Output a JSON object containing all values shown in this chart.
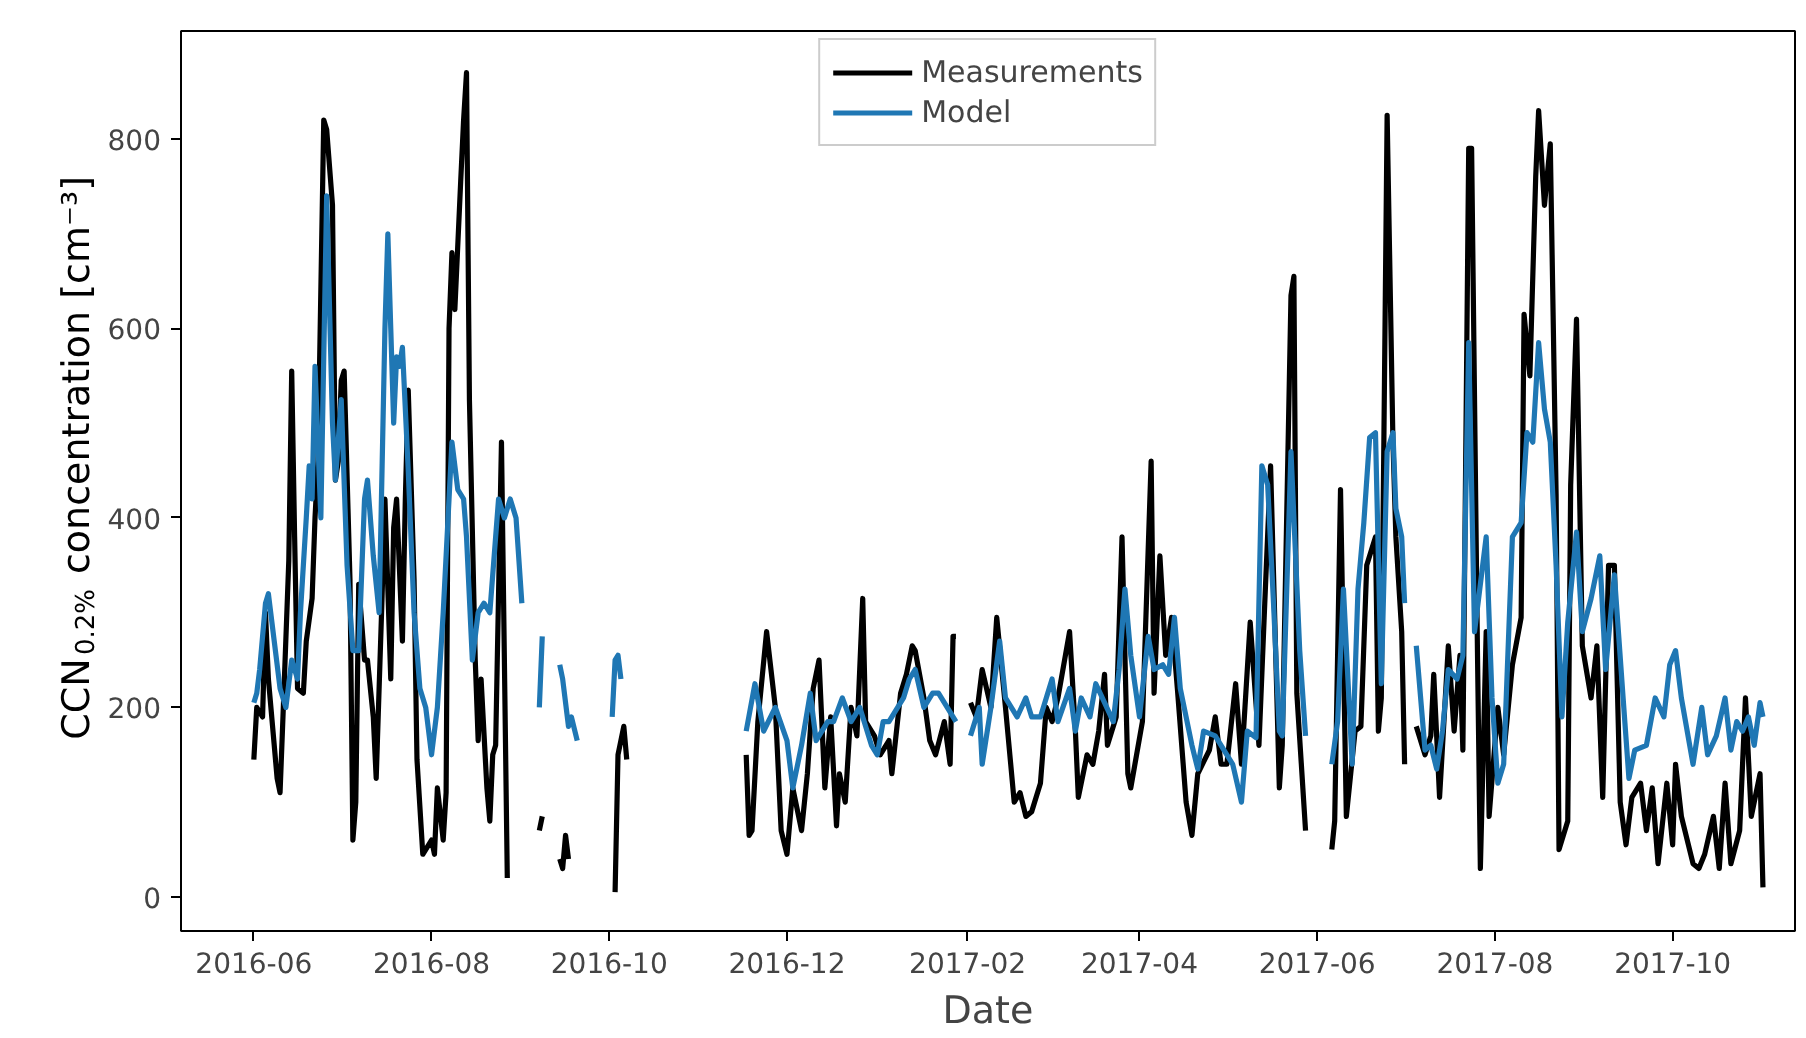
{
  "chart_data": {
    "type": "line",
    "xlabel": "Date",
    "ylabel": "CCN$_{0.2%}$ concentration [cm⁻³]",
    "xlim": [
      "2016-05-07",
      "2017-11-12"
    ],
    "ylim": [
      -36,
      914
    ],
    "xticks": [
      "2016-06",
      "2016-08",
      "2016-10",
      "2016-12",
      "2017-02",
      "2017-04",
      "2017-06",
      "2017-08",
      "2017-10"
    ],
    "yticks": [
      0,
      200,
      400,
      600,
      800
    ],
    "grid": false,
    "legend": "top",
    "marker": "none",
    "line_style": "solid",
    "series": [
      {
        "name": "Measurements",
        "color": "#000000",
        "x": [
          "2016-06-01",
          "2016-06-02",
          "2016-06-04",
          "2016-06-05",
          "2016-06-06",
          "2016-06-08",
          "2016-06-09",
          "2016-06-10",
          "2016-06-11",
          "2016-06-13",
          "2016-06-14",
          "2016-06-15",
          "2016-06-16",
          "2016-06-18",
          "2016-06-19",
          "2016-06-21",
          "2016-06-22",
          "2016-06-23",
          "2016-06-25",
          "2016-06-26",
          "2016-06-28",
          "2016-06-29",
          "2016-06-30",
          "2016-07-01",
          "2016-07-02",
          "2016-07-04",
          "2016-07-05",
          "2016-07-06",
          "2016-07-07",
          "2016-07-09",
          "2016-07-10",
          "2016-07-12",
          "2016-07-13",
          "2016-07-15",
          "2016-07-16",
          "2016-07-18",
          "2016-07-19",
          "2016-07-20",
          "2016-07-22",
          "2016-07-23",
          "2016-07-24",
          "2016-07-26",
          "2016-07-27",
          "2016-07-29",
          "2016-07-30",
          "2016-08-01",
          "2016-08-02",
          "2016-08-03",
          "2016-08-05",
          "2016-08-06",
          "2016-08-07",
          "2016-08-08",
          "2016-08-09",
          "2016-08-11",
          "2016-08-12",
          "2016-08-13",
          "2016-08-14",
          "2016-08-16",
          "2016-08-17",
          "2016-08-18",
          "2016-08-20",
          "2016-08-21",
          "2016-08-22",
          "2016-08-23",
          "2016-08-25",
          "2016-08-26",
          "2016-08-27",
          "2016-08-30",
          "2016-09-07",
          "2016-09-08",
          "2016-09-11",
          "2016-09-14",
          "2016-09-15",
          "2016-09-16",
          "2016-09-17",
          "2016-09-25",
          "2016-10-03",
          "2016-10-04",
          "2016-10-05",
          "2016-10-06",
          "2016-10-07",
          "2016-11-01",
          "2016-11-17",
          "2016-11-18",
          "2016-11-19",
          "2016-11-21",
          "2016-11-24",
          "2016-11-27",
          "2016-11-29",
          "2016-12-01",
          "2016-12-03",
          "2016-12-06",
          "2016-12-08",
          "2016-12-10",
          "2016-12-12",
          "2016-12-14",
          "2016-12-16",
          "2016-12-18",
          "2016-12-19",
          "2016-12-21",
          "2016-12-23",
          "2016-12-25",
          "2016-12-27",
          "2016-12-28",
          "2016-12-31",
          "2017-01-02",
          "2017-01-05",
          "2017-01-06",
          "2017-01-09",
          "2017-01-11",
          "2017-01-13",
          "2017-01-14",
          "2017-01-17",
          "2017-01-19",
          "2017-01-21",
          "2017-01-24",
          "2017-01-26",
          "2017-01-27",
          "2017-01-28",
          "2017-01-31",
          "2017-02-02",
          "2017-02-04",
          "2017-02-06",
          "2017-02-09",
          "2017-02-11",
          "2017-02-14",
          "2017-02-17",
          "2017-02-19",
          "2017-02-21",
          "2017-02-23",
          "2017-02-26",
          "2017-02-28",
          "2017-03-02",
          "2017-03-04",
          "2017-03-08",
          "2017-03-10",
          "2017-03-11",
          "2017-03-14",
          "2017-03-16",
          "2017-03-18",
          "2017-03-20",
          "2017-03-21",
          "2017-03-24",
          "2017-03-26",
          "2017-03-28",
          "2017-03-29",
          "2017-04-02",
          "2017-04-05",
          "2017-04-06",
          "2017-04-08",
          "2017-04-10",
          "2017-04-12",
          "2017-04-14",
          "2017-04-17",
          "2017-04-19",
          "2017-04-21",
          "2017-04-25",
          "2017-04-27",
          "2017-04-29",
          "2017-05-01",
          "2017-05-04",
          "2017-05-06",
          "2017-05-09",
          "2017-05-12",
          "2017-05-14",
          "2017-05-16",
          "2017-05-19",
          "2017-05-20",
          "2017-05-23",
          "2017-05-24",
          "2017-05-25",
          "2017-05-28",
          "2017-06-02",
          "2017-06-06",
          "2017-06-07",
          "2017-06-09",
          "2017-06-11",
          "2017-06-14",
          "2017-06-16",
          "2017-06-18",
          "2017-06-21",
          "2017-06-22",
          "2017-06-23",
          "2017-06-25",
          "2017-06-27",
          "2017-06-28",
          "2017-06-30",
          "2017-07-01",
          "2017-07-03",
          "2017-07-05",
          "2017-07-08",
          "2017-07-10",
          "2017-07-11",
          "2017-07-13",
          "2017-07-16",
          "2017-07-18",
          "2017-07-20",
          "2017-07-21",
          "2017-07-23",
          "2017-07-24",
          "2017-07-26",
          "2017-07-27",
          "2017-07-29",
          "2017-07-30",
          "2017-08-02",
          "2017-08-04",
          "2017-08-07",
          "2017-08-10",
          "2017-08-11",
          "2017-08-13",
          "2017-08-15",
          "2017-08-16",
          "2017-08-18",
          "2017-08-20",
          "2017-08-22",
          "2017-08-23",
          "2017-08-26",
          "2017-08-27",
          "2017-08-29",
          "2017-08-31",
          "2017-09-03",
          "2017-09-05",
          "2017-09-07",
          "2017-09-09",
          "2017-09-11",
          "2017-09-13",
          "2017-09-15",
          "2017-09-17",
          "2017-09-20",
          "2017-09-22",
          "2017-09-24",
          "2017-09-26",
          "2017-09-29",
          "2017-10-01",
          "2017-10-02",
          "2017-10-04",
          "2017-10-08",
          "2017-10-10",
          "2017-10-12",
          "2017-10-15",
          "2017-10-17",
          "2017-10-19",
          "2017-10-21",
          "2017-10-24",
          "2017-10-26",
          "2017-10-28",
          "2017-10-31",
          "2017-11-01"
        ],
        "values": [
          145,
          200,
          190,
          300,
          230,
          160,
          125,
          110,
          190,
          355,
          555,
          380,
          220,
          215,
          270,
          315,
          400,
          460,
          820,
          810,
          730,
          440,
          460,
          545,
          555,
          335,
          60,
          100,
          330,
          250,
          250,
          190,
          125,
          315,
          420,
          230,
          390,
          420,
          270,
          420,
          535,
          335,
          145,
          45,
          50,
          60,
          45,
          115,
          60,
          110,
          600,
          680,
          620,
          755,
          820,
          870,
          525,
          250,
          165,
          230,
          115,
          80,
          150,
          160,
          480,
          250,
          20,
          null,
          70,
          85,
          null,
          40,
          30,
          65,
          40,
          null,
          5,
          150,
          165,
          180,
          145,
          null,
          150,
          65,
          70,
          185,
          280,
          200,
          70,
          45,
          115,
          70,
          130,
          220,
          250,
          115,
          190,
          75,
          130,
          100,
          200,
          170,
          315,
          185,
          170,
          150,
          165,
          130,
          215,
          235,
          265,
          260,
          210,
          165,
          150,
          185,
          140,
          275,
          275,
          null,
          205,
          190,
          240,
          200,
          295,
          200,
          100,
          110,
          85,
          90,
          120,
          200,
          185,
          210,
          280,
          175,
          105,
          150,
          140,
          175,
          235,
          160,
          190,
          380,
          130,
          115,
          185,
          460,
          215,
          360,
          255,
          295,
          220,
          100,
          65,
          130,
          155,
          190,
          140,
          140,
          225,
          140,
          290,
          160,
          310,
          455,
          115,
          160,
          635,
          655,
          215,
          70,
          null,
          50,
          80,
          430,
          85,
          175,
          180,
          350,
          380,
          175,
          210,
          825,
          480,
          380,
          280,
          140,
          null,
          180,
          150,
          170,
          235,
          105,
          265,
          175,
          255,
          155,
          790,
          790,
          260,
          30,
          280,
          85,
          200,
          150,
          245,
          295,
          615,
          550,
          760,
          830,
          730,
          795,
          425,
          50,
          80,
          435,
          610,
          265,
          210,
          265,
          105,
          350,
          350,
          100,
          55,
          105,
          120,
          70,
          115,
          35,
          120,
          55,
          140,
          85,
          35,
          30,
          45,
          85,
          30,
          120,
          35,
          70,
          210,
          85,
          130,
          10
        ]
      },
      {
        "name": "Model",
        "color": "#1f77b4",
        "x": [
          "2016-06-01",
          "2016-06-02",
          "2016-06-03",
          "2016-06-05",
          "2016-06-06",
          "2016-06-08",
          "2016-06-10",
          "2016-06-12",
          "2016-06-14",
          "2016-06-16",
          "2016-06-17",
          "2016-06-19",
          "2016-06-20",
          "2016-06-21",
          "2016-06-22",
          "2016-06-24",
          "2016-06-26",
          "2016-06-28",
          "2016-06-29",
          "2016-07-01",
          "2016-07-03",
          "2016-07-05",
          "2016-07-07",
          "2016-07-09",
          "2016-07-10",
          "2016-07-12",
          "2016-07-14",
          "2016-07-16",
          "2016-07-17",
          "2016-07-18",
          "2016-07-19",
          "2016-07-20",
          "2016-07-21",
          "2016-07-22",
          "2016-07-24",
          "2016-07-26",
          "2016-07-28",
          "2016-07-30",
          "2016-08-01",
          "2016-08-03",
          "2016-08-05",
          "2016-08-07",
          "2016-08-08",
          "2016-08-10",
          "2016-08-12",
          "2016-08-13",
          "2016-08-15",
          "2016-08-17",
          "2016-08-19",
          "2016-08-21",
          "2016-08-23",
          "2016-08-24",
          "2016-08-26",
          "2016-08-28",
          "2016-08-30",
          "2016-09-01",
          "2016-09-04",
          "2016-09-07",
          "2016-09-08",
          "2016-09-11",
          "2016-09-14",
          "2016-09-15",
          "2016-09-17",
          "2016-09-18",
          "2016-09-20",
          "2016-09-25",
          "2016-10-02",
          "2016-10-03",
          "2016-10-04",
          "2016-10-05",
          "2016-11-01",
          "2016-11-17",
          "2016-11-20",
          "2016-11-23",
          "2016-11-27",
          "2016-12-01",
          "2016-12-03",
          "2016-12-06",
          "2016-12-09",
          "2016-12-11",
          "2016-12-15",
          "2016-12-17",
          "2016-12-20",
          "2016-12-23",
          "2016-12-26",
          "2016-12-30",
          "2017-01-01",
          "2017-01-03",
          "2017-01-05",
          "2017-01-08",
          "2017-01-10",
          "2017-01-12",
          "2017-01-14",
          "2017-01-17",
          "2017-01-20",
          "2017-01-22",
          "2017-01-25",
          "2017-01-28",
          "2017-01-31",
          "2017-02-02",
          "2017-02-05",
          "2017-02-06",
          "2017-02-09",
          "2017-02-12",
          "2017-02-14",
          "2017-02-18",
          "2017-02-21",
          "2017-02-23",
          "2017-02-26",
          "2017-02-28",
          "2017-03-02",
          "2017-03-04",
          "2017-03-08",
          "2017-03-10",
          "2017-03-12",
          "2017-03-15",
          "2017-03-17",
          "2017-03-20",
          "2017-03-23",
          "2017-03-25",
          "2017-03-27",
          "2017-03-29",
          "2017-04-01",
          "2017-04-04",
          "2017-04-06",
          "2017-04-09",
          "2017-04-11",
          "2017-04-13",
          "2017-04-15",
          "2017-04-19",
          "2017-04-21",
          "2017-04-23",
          "2017-04-27",
          "2017-04-30",
          "2017-05-03",
          "2017-05-06",
          "2017-05-08",
          "2017-05-11",
          "2017-05-13",
          "2017-05-15",
          "2017-05-17",
          "2017-05-19",
          "2017-05-20",
          "2017-05-23",
          "2017-05-24",
          "2017-05-26",
          "2017-05-28",
          "2017-06-02",
          "2017-06-06",
          "2017-06-08",
          "2017-06-10",
          "2017-06-13",
          "2017-06-15",
          "2017-06-17",
          "2017-06-19",
          "2017-06-21",
          "2017-06-23",
          "2017-06-25",
          "2017-06-27",
          "2017-06-28",
          "2017-06-30",
          "2017-07-01",
          "2017-07-03",
          "2017-07-05",
          "2017-07-08",
          "2017-07-10",
          "2017-07-12",
          "2017-07-14",
          "2017-07-16",
          "2017-07-19",
          "2017-07-21",
          "2017-07-23",
          "2017-07-25",
          "2017-07-29",
          "2017-07-31",
          "2017-08-02",
          "2017-08-04",
          "2017-08-07",
          "2017-08-10",
          "2017-08-12",
          "2017-08-14",
          "2017-08-16",
          "2017-08-18",
          "2017-08-20",
          "2017-08-22",
          "2017-08-24",
          "2017-08-26",
          "2017-08-29",
          "2017-08-31",
          "2017-09-03",
          "2017-09-06",
          "2017-09-08",
          "2017-09-11",
          "2017-09-14",
          "2017-09-16",
          "2017-09-18",
          "2017-09-22",
          "2017-09-25",
          "2017-09-28",
          "2017-09-30",
          "2017-10-02",
          "2017-10-04",
          "2017-10-08",
          "2017-10-11",
          "2017-10-13",
          "2017-10-16",
          "2017-10-19",
          "2017-10-21",
          "2017-10-23",
          "2017-10-25",
          "2017-10-27",
          "2017-10-29",
          "2017-10-31",
          "2017-11-01"
        ],
        "values": [
          205,
          215,
          240,
          310,
          320,
          270,
          220,
          200,
          250,
          230,
          300,
          400,
          455,
          420,
          560,
          400,
          740,
          500,
          440,
          525,
          350,
          260,
          260,
          420,
          440,
          360,
          300,
          600,
          700,
          600,
          500,
          570,
          560,
          580,
          450,
          300,
          220,
          200,
          150,
          200,
          300,
          420,
          480,
          430,
          420,
          380,
          250,
          300,
          310,
          300,
          380,
          420,
          400,
          420,
          400,
          310,
          null,
          200,
          275,
          null,
          245,
          230,
          180,
          190,
          165,
          null,
          190,
          250,
          255,
          230,
          null,
          175,
          225,
          175,
          200,
          165,
          115,
          160,
          215,
          165,
          185,
          185,
          210,
          185,
          200,
          160,
          150,
          185,
          185,
          200,
          210,
          230,
          240,
          200,
          215,
          215,
          200,
          185,
          null,
          170,
          200,
          140,
          200,
          270,
          210,
          190,
          210,
          190,
          190,
          210,
          230,
          185,
          220,
          175,
          210,
          190,
          225,
          205,
          185,
          240,
          325,
          255,
          190,
          275,
          240,
          245,
          235,
          295,
          220,
          160,
          135,
          175,
          170,
          155,
          140,
          100,
          175,
          168,
          455,
          435,
          310,
          175,
          170,
          470,
          400,
          260,
          170,
          null,
          140,
          185,
          325,
          140,
          325,
          395,
          485,
          490,
          225,
          470,
          490,
          410,
          380,
          310,
          null,
          265,
          155,
          160,
          135,
          175,
          240,
          230,
          255,
          585,
          280,
          380,
          210,
          120,
          140,
          380,
          395,
          490,
          480,
          585,
          515,
          480,
          350,
          190,
          290,
          385,
          280,
          315,
          360,
          240,
          340,
          210,
          125,
          155,
          160,
          210,
          190,
          245,
          260,
          210,
          140,
          200,
          150,
          170,
          210,
          155,
          185,
          175,
          190,
          160,
          205,
          190
        ]
      }
    ]
  }
}
